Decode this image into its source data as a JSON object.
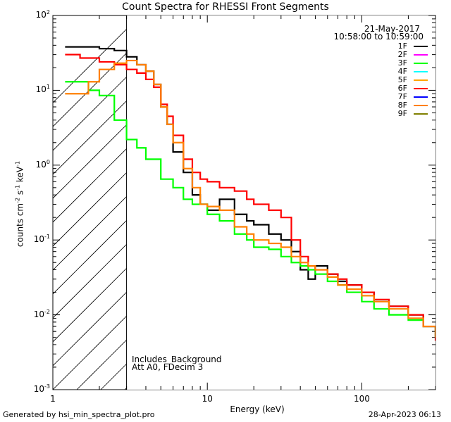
{
  "chart_data": {
    "type": "line",
    "title": "Count Spectra for RHESSI Front Segments",
    "date": "21-May-2017",
    "time_range": "10:58:00 to 10:59:00",
    "xlabel": "Energy (keV)",
    "ylabel_main": "counts cm",
    "ylabel_exp1": "-2",
    "ylabel_mid": " s",
    "ylabel_exp2": "-1",
    "ylabel_unit": " keV",
    "ylabel_exp3": "-1",
    "xscale": "log",
    "yscale": "log",
    "xlim": [
      1.0,
      300.0
    ],
    "ylim": [
      0.001,
      100.0
    ],
    "x_ticks": [
      {
        "value": 1,
        "label": "1"
      },
      {
        "value": 10,
        "label": "10"
      },
      {
        "value": 100,
        "label": "100"
      }
    ],
    "y_ticks": [
      {
        "value": 0.001,
        "base": "10",
        "exp": "-3"
      },
      {
        "value": 0.01,
        "base": "10",
        "exp": "-2"
      },
      {
        "value": 0.1,
        "base": "10",
        "exp": "-1"
      },
      {
        "value": 1,
        "base": "10",
        "exp": "0"
      },
      {
        "value": 10,
        "base": "10",
        "exp": "1"
      },
      {
        "value": 100,
        "base": "10",
        "exp": "2"
      }
    ],
    "hatched_region": [
      1.0,
      3.0
    ],
    "annotations": [
      "Includes_Background",
      "Att A0, FDecim 3"
    ],
    "legend": [
      {
        "name": "1F",
        "color": "#000000"
      },
      {
        "name": "2F",
        "color": "#ff00ff"
      },
      {
        "name": "3F",
        "color": "#00ff00"
      },
      {
        "name": "4F",
        "color": "#00ffff"
      },
      {
        "name": "5F",
        "color": "#ffa500"
      },
      {
        "name": "6F",
        "color": "#ff0000"
      },
      {
        "name": "7F",
        "color": "#0000ff"
      },
      {
        "name": "8F",
        "color": "#ff8000"
      },
      {
        "name": "9F",
        "color": "#808000"
      }
    ],
    "series": [
      {
        "name": "1F",
        "color": "#000000",
        "x": [
          1.2,
          1.5,
          2.0,
          2.5,
          3.0,
          3.5,
          4.0,
          4.5,
          5.0,
          5.5,
          6.0,
          7.0,
          8.0,
          9.0,
          10,
          12,
          15,
          18,
          20,
          25,
          30,
          35,
          40,
          45,
          50,
          60,
          70,
          80,
          100,
          120,
          150,
          200,
          250,
          300
        ],
        "y": [
          38,
          38,
          36,
          34,
          28,
          22,
          18,
          12,
          6,
          3.5,
          1.5,
          0.8,
          0.4,
          0.3,
          0.25,
          0.35,
          0.22,
          0.18,
          0.16,
          0.12,
          0.1,
          0.07,
          0.04,
          0.03,
          0.045,
          0.035,
          0.028,
          0.025,
          0.02,
          0.015,
          0.013,
          0.01,
          0.007,
          0.005
        ]
      },
      {
        "name": "3F",
        "color": "#00ff00",
        "x": [
          1.2,
          1.5,
          1.7,
          2.0,
          2.5,
          3.0,
          3.5,
          4.0,
          5.0,
          6.0,
          7.0,
          8.0,
          10,
          12,
          15,
          18,
          20,
          25,
          30,
          35,
          40,
          45,
          50,
          60,
          70,
          80,
          100,
          120,
          150,
          200,
          250,
          300
        ],
        "y": [
          13,
          13,
          10,
          8.5,
          4.0,
          2.2,
          1.7,
          1.2,
          0.65,
          0.5,
          0.35,
          0.3,
          0.22,
          0.18,
          0.12,
          0.1,
          0.08,
          0.075,
          0.06,
          0.05,
          0.045,
          0.04,
          0.035,
          0.028,
          0.025,
          0.02,
          0.015,
          0.012,
          0.01,
          0.0085,
          0.007,
          0.005
        ]
      },
      {
        "name": "6F",
        "color": "#ff0000",
        "x": [
          1.2,
          1.5,
          2.0,
          2.5,
          3.0,
          3.5,
          4.0,
          4.5,
          5.0,
          5.5,
          6.0,
          7.0,
          8.0,
          9.0,
          10,
          12,
          15,
          18,
          20,
          25,
          30,
          35,
          40,
          45,
          50,
          60,
          70,
          80,
          100,
          120,
          150,
          200,
          250,
          300
        ],
        "y": [
          30,
          27,
          24,
          22,
          19,
          17,
          14,
          11,
          6.5,
          4.5,
          2.5,
          1.2,
          0.8,
          0.65,
          0.6,
          0.5,
          0.45,
          0.35,
          0.3,
          0.25,
          0.2,
          0.1,
          0.06,
          0.045,
          0.04,
          0.035,
          0.03,
          0.025,
          0.02,
          0.016,
          0.013,
          0.01,
          0.007,
          0.0045
        ]
      },
      {
        "name": "8F",
        "color": "#ff8000",
        "x": [
          1.2,
          1.5,
          1.7,
          2.0,
          2.5,
          3.0,
          3.5,
          4.0,
          4.5,
          5.0,
          5.5,
          6.0,
          7.0,
          8.0,
          9.0,
          10,
          12,
          15,
          18,
          20,
          25,
          30,
          35,
          40,
          45,
          50,
          60,
          70,
          80,
          100,
          120,
          150,
          200,
          250,
          300
        ],
        "y": [
          9,
          9,
          13,
          19,
          23,
          25,
          22,
          18,
          12,
          6,
          3.5,
          2.0,
          0.9,
          0.5,
          0.3,
          0.28,
          0.25,
          0.15,
          0.12,
          0.1,
          0.09,
          0.08,
          0.06,
          0.05,
          0.045,
          0.04,
          0.032,
          0.025,
          0.022,
          0.018,
          0.015,
          0.012,
          0.009,
          0.007,
          0.005
        ]
      }
    ]
  },
  "footer": {
    "generated": "Generated by hsi_min_spectra_plot.pro",
    "timestamp": "28-Apr-2023 06:13"
  }
}
